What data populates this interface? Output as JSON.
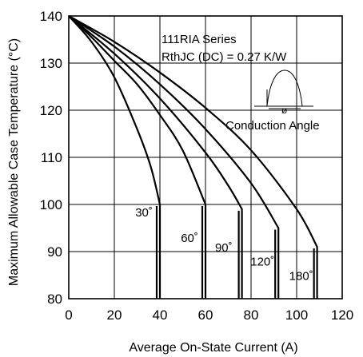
{
  "chart_data": {
    "type": "line",
    "title": "",
    "xlabel": "Average On-State Current (A)",
    "ylabel": "Maximum Allowable Case Temperature (°C)",
    "xlim": [
      0,
      120
    ],
    "ylim": [
      80,
      140
    ],
    "xticks": [
      0,
      20,
      40,
      60,
      80,
      100,
      120
    ],
    "yticks": [
      80,
      90,
      100,
      110,
      120,
      130,
      140
    ],
    "grid": true,
    "annotations": {
      "series_name": "111RIA Series",
      "rth": "RthJC (DC) = 0.27 K/W",
      "conduction_angle": "Conduction Angle",
      "phi": "ø"
    },
    "series": [
      {
        "name": "30˚",
        "label_pos": [
          33,
          97.5
        ],
        "x": [
          0,
          10,
          20,
          30,
          36,
          40,
          40
        ],
        "y": [
          140,
          134.5,
          127,
          116,
          108,
          100,
          80
        ]
      },
      {
        "name": "60˚",
        "label_pos": [
          53,
          92
        ],
        "x": [
          0,
          10,
          20,
          30,
          40,
          50,
          60,
          60
        ],
        "y": [
          140,
          135.5,
          130.5,
          125.5,
          119,
          111.5,
          100,
          80
        ]
      },
      {
        "name": "90˚",
        "label_pos": [
          68,
          90
        ],
        "x": [
          0,
          20,
          40,
          60,
          70,
          76,
          76
        ],
        "y": [
          140,
          132,
          122.5,
          111,
          104,
          99,
          80
        ]
      },
      {
        "name": "120˚",
        "label_pos": [
          85,
          87
        ],
        "x": [
          0,
          20,
          40,
          60,
          80,
          92,
          92
        ],
        "y": [
          140,
          133.5,
          125.5,
          116,
          104.5,
          95,
          80
        ]
      },
      {
        "name": "180˚",
        "label_pos": [
          102,
          84
        ],
        "x": [
          0,
          20,
          40,
          60,
          80,
          100,
          109,
          109
        ],
        "y": [
          140,
          134.5,
          128,
          120.5,
          111.5,
          99,
          91,
          80
        ]
      }
    ]
  }
}
